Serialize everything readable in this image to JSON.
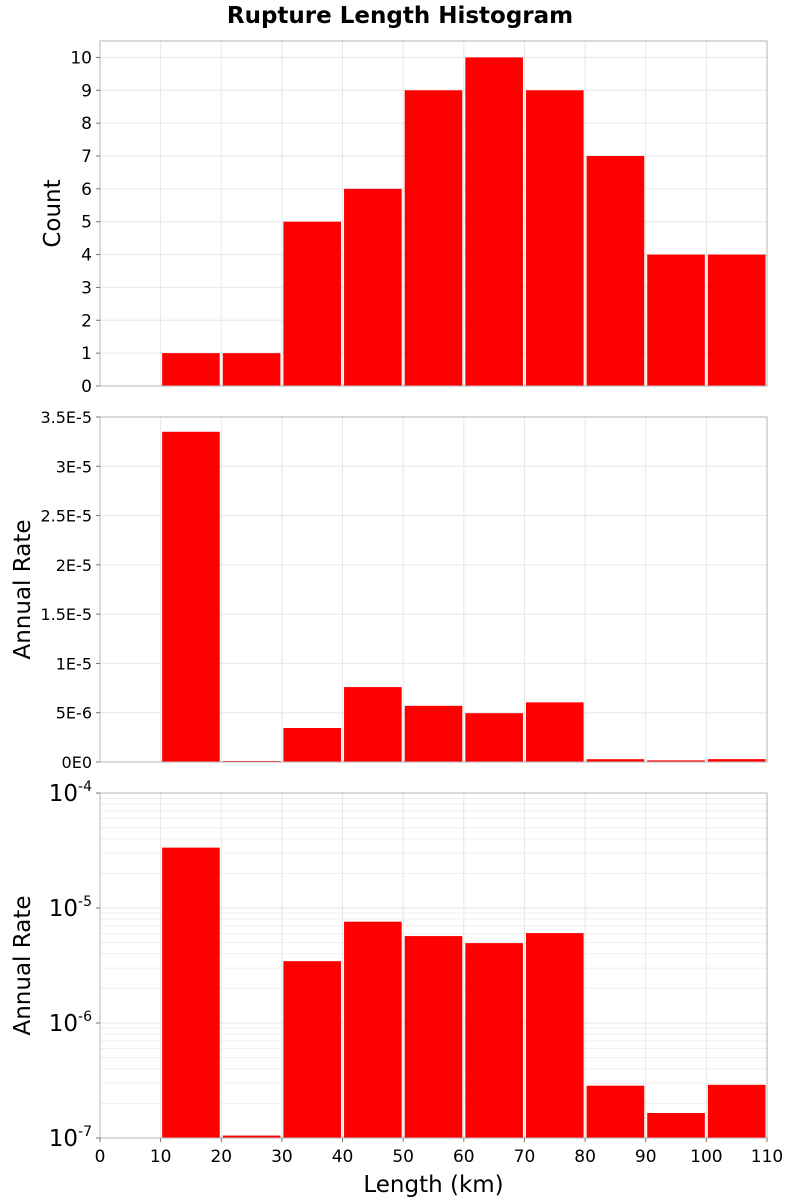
{
  "title": "Rupture Length Histogram",
  "chart_data": [
    {
      "type": "bar",
      "ylabel": "Count",
      "yscale": "linear",
      "ylim": [
        0,
        10.5
      ],
      "yticks": [
        0,
        1,
        2,
        3,
        4,
        5,
        6,
        7,
        8,
        9,
        10
      ],
      "ytick_labels": [
        "0",
        "1",
        "2",
        "3",
        "4",
        "5",
        "6",
        "7",
        "8",
        "9",
        "10"
      ],
      "bins": [
        [
          10,
          20
        ],
        [
          20,
          30
        ],
        [
          30,
          40
        ],
        [
          40,
          50
        ],
        [
          50,
          60
        ],
        [
          60,
          70
        ],
        [
          70,
          80
        ],
        [
          80,
          90
        ],
        [
          90,
          100
        ],
        [
          100,
          110
        ]
      ],
      "values": [
        1,
        1,
        5,
        6,
        9,
        10,
        9,
        7,
        4,
        4
      ]
    },
    {
      "type": "bar",
      "ylabel": "Annual Rate",
      "yscale": "linear",
      "ylim": [
        0,
        3.5e-05
      ],
      "yticks": [
        0,
        5e-06,
        1e-05,
        1.5e-05,
        2e-05,
        2.5e-05,
        3e-05,
        3.5e-05
      ],
      "ytick_labels": [
        "0E0",
        "5E-6",
        "1E-5",
        "1.5E-5",
        "2E-5",
        "2.5E-5",
        "3E-5",
        "3.5E-5"
      ],
      "bins": [
        [
          10,
          20
        ],
        [
          20,
          30
        ],
        [
          30,
          40
        ],
        [
          40,
          50
        ],
        [
          50,
          60
        ],
        [
          60,
          70
        ],
        [
          70,
          80
        ],
        [
          80,
          90
        ],
        [
          90,
          100
        ],
        [
          100,
          110
        ]
      ],
      "values": [
        3.35e-05,
        1.05e-07,
        3.45e-06,
        7.6e-06,
        5.7e-06,
        4.95e-06,
        6.05e-06,
        2.85e-07,
        1.65e-07,
        2.9e-07
      ]
    },
    {
      "type": "bar",
      "ylabel": "Annual Rate",
      "yscale": "log",
      "ylim": [
        1e-07,
        0.0001
      ],
      "yticks": [
        1e-07,
        1e-06,
        1e-05,
        0.0001
      ],
      "ytick_labels": [
        [
          "10",
          "-7"
        ],
        [
          "10",
          "-6"
        ],
        [
          "10",
          "-5"
        ],
        [
          "10",
          "-4"
        ]
      ],
      "xlabel": "Length (km)",
      "xlim": [
        0,
        110
      ],
      "xticks": [
        0,
        10,
        20,
        30,
        40,
        50,
        60,
        70,
        80,
        90,
        100,
        110
      ],
      "xtick_labels": [
        "0",
        "10",
        "20",
        "30",
        "40",
        "50",
        "60",
        "70",
        "80",
        "90",
        "100",
        "110"
      ],
      "bins": [
        [
          10,
          20
        ],
        [
          20,
          30
        ],
        [
          30,
          40
        ],
        [
          40,
          50
        ],
        [
          50,
          60
        ],
        [
          60,
          70
        ],
        [
          70,
          80
        ],
        [
          80,
          90
        ],
        [
          90,
          100
        ],
        [
          100,
          110
        ]
      ],
      "values": [
        3.35e-05,
        1.05e-07,
        3.45e-06,
        7.6e-06,
        5.7e-06,
        4.95e-06,
        6.05e-06,
        2.85e-07,
        1.65e-07,
        2.9e-07
      ]
    }
  ],
  "bar_color": "#ff0000"
}
